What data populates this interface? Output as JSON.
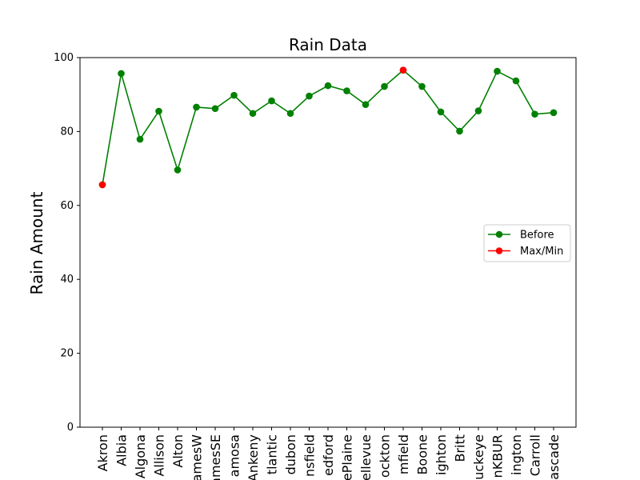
{
  "chart_data": {
    "type": "line",
    "title": "Rain Data",
    "xlabel": "",
    "ylabel": "Rain Amount",
    "ylim": [
      0,
      100
    ],
    "yticks": [
      0,
      20,
      40,
      60,
      80,
      100
    ],
    "grid": false,
    "legend_position": "center-right",
    "categories": [
      "Akron",
      "Albia",
      "Algona",
      "Allison",
      "Alton",
      "AmesW",
      "AmesSE",
      "Alamosa",
      "Ankeny",
      "Atlantic",
      "Audubon",
      "Bansfield",
      "Bedford",
      "BellePlaine",
      "Bellevue",
      "Blockton",
      "Bloomfield",
      "Boone",
      "Brighton",
      "Britt",
      "Buckeye",
      "BurlingtonKBUR",
      "Burlington",
      "Carroll",
      "Cascade"
    ],
    "tick_labels": [
      "Akron",
      "Albia",
      "Algona",
      "Allison",
      "Alton",
      "amesW",
      "amesSE",
      "amosa",
      "Ankeny",
      "tlantic",
      "dubon",
      "nsfield",
      "edford",
      "ePlaine",
      "ellevue",
      "ockton",
      "mfield",
      "Boone",
      "ighton",
      "Britt",
      "uckeye",
      "nKBUR",
      "ington",
      "Carroll",
      "ascade"
    ],
    "series": [
      {
        "name": "Before",
        "color": "#008000",
        "values": [
          65.6,
          95.7,
          77.9,
          85.5,
          69.6,
          86.6,
          86.2,
          89.8,
          84.9,
          88.3,
          84.9,
          89.6,
          92.4,
          91.0,
          87.3,
          92.2,
          96.6,
          92.2,
          85.3,
          80.1,
          85.6,
          96.3,
          93.7,
          84.7,
          85.1
        ]
      },
      {
        "name": "Max/Min",
        "color": "#ff0000",
        "points": [
          {
            "category": "Akron",
            "value": 65.6
          },
          {
            "category": "Bloomfield",
            "value": 96.6
          }
        ]
      }
    ]
  }
}
